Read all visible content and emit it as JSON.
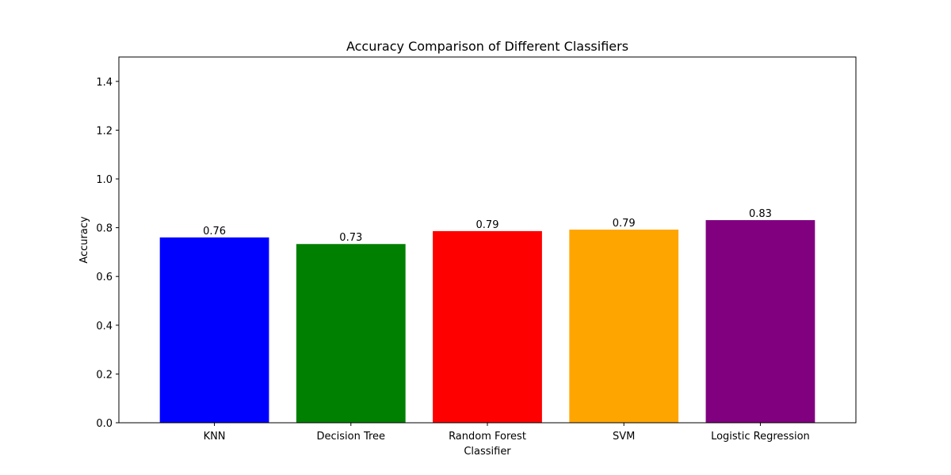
{
  "chart_data": {
    "type": "bar",
    "title": "Accuracy Comparison of Different Classifiers",
    "xlabel": "Classifier",
    "ylabel": "Accuracy",
    "categories": [
      "KNN",
      "Decision Tree",
      "Random Forest",
      "SVM",
      "Logistic Regression"
    ],
    "values": [
      0.76,
      0.733,
      0.786,
      0.792,
      0.831
    ],
    "value_labels": [
      "0.76",
      "0.73",
      "0.79",
      "0.79",
      "0.83"
    ],
    "colors": [
      "#0000ff",
      "#008000",
      "#ff0000",
      "#ffa500",
      "#800080"
    ],
    "ylim": [
      0,
      1.5
    ],
    "yticks": [
      0.0,
      0.2,
      0.4,
      0.6,
      0.8,
      1.0,
      1.2,
      1.4
    ],
    "ytick_labels": [
      "0.0",
      "0.2",
      "0.4",
      "0.6",
      "0.8",
      "1.0",
      "1.2",
      "1.4"
    ],
    "grid": false,
    "legend": "none"
  }
}
